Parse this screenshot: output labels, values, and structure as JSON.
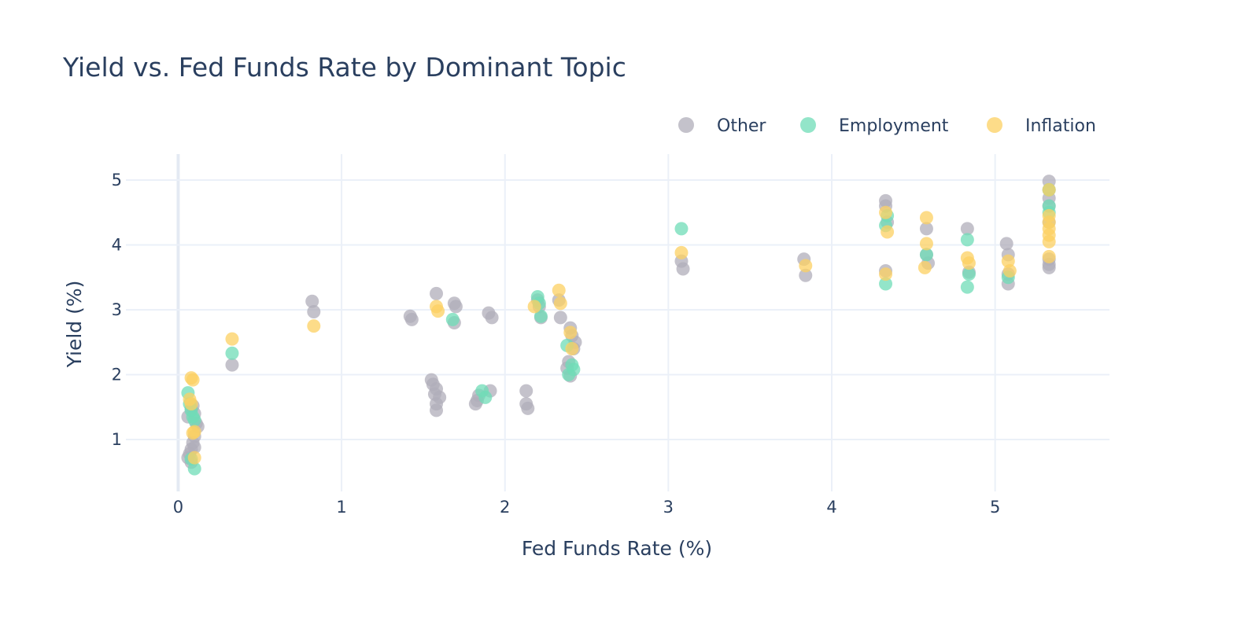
{
  "chart_data": {
    "type": "scatter",
    "title": "Yield vs. Fed Funds Rate by Dominant Topic",
    "xlabel": "Fed Funds Rate (%)",
    "ylabel": "Yield (%)",
    "xlim": [
      -0.32,
      5.7
    ],
    "ylim": [
      0.2,
      5.4
    ],
    "xticks": [
      0,
      1,
      2,
      3,
      4,
      5
    ],
    "yticks": [
      1,
      2,
      3,
      4,
      5
    ],
    "grid": true,
    "legend_position": "top-right",
    "legend_orientation": "horizontal",
    "series": [
      {
        "name": "Other",
        "color": "#b0aeb9",
        "x": [
          0.06,
          0.07,
          0.08,
          0.09,
          0.1,
          0.11,
          0.06,
          0.08,
          0.09,
          0.1,
          0.12,
          0.08,
          0.1,
          0.33,
          0.82,
          0.83,
          1.42,
          1.43,
          1.55,
          1.56,
          1.58,
          1.57,
          1.58,
          1.58,
          1.6,
          1.58,
          1.69,
          1.7,
          1.69,
          1.82,
          1.83,
          1.84,
          1.9,
          1.92,
          1.91,
          2.13,
          2.13,
          2.14,
          2.2,
          2.21,
          2.22,
          2.33,
          2.34,
          2.4,
          2.41,
          2.39,
          2.42,
          2.4,
          2.43,
          2.38,
          3.08,
          3.09,
          3.83,
          3.84,
          4.33,
          4.33,
          4.34,
          4.33,
          4.58,
          4.58,
          4.59,
          4.83,
          4.84,
          5.07,
          5.08,
          5.08,
          5.08,
          5.33,
          5.33,
          5.33,
          5.33,
          5.33,
          5.33,
          5.33,
          5.33
        ],
        "y": [
          0.72,
          0.78,
          0.85,
          0.95,
          1.05,
          1.25,
          1.35,
          1.48,
          1.52,
          1.4,
          1.2,
          0.65,
          0.88,
          2.15,
          3.13,
          2.97,
          2.9,
          2.85,
          1.92,
          1.85,
          1.78,
          1.7,
          1.55,
          1.45,
          1.65,
          3.25,
          3.1,
          3.05,
          2.8,
          1.55,
          1.6,
          1.68,
          2.95,
          2.88,
          1.75,
          1.75,
          1.55,
          1.48,
          3.15,
          3.05,
          2.88,
          3.15,
          2.88,
          2.72,
          2.6,
          2.2,
          2.4,
          1.98,
          2.5,
          2.1,
          3.75,
          3.63,
          3.78,
          3.53,
          4.68,
          4.6,
          4.35,
          3.6,
          4.25,
          3.85,
          3.72,
          4.25,
          3.58,
          4.02,
          3.85,
          3.55,
          3.4,
          4.98,
          4.85,
          4.72,
          4.6,
          4.35,
          3.78,
          3.7,
          3.65
        ]
      },
      {
        "name": "Employment",
        "color": "#6fdcb7",
        "x": [
          0.06,
          0.07,
          0.08,
          0.09,
          0.1,
          0.08,
          0.1,
          0.33,
          1.68,
          1.86,
          1.88,
          2.2,
          2.21,
          2.22,
          2.38,
          2.39,
          2.41,
          2.42,
          3.08,
          4.33,
          4.33,
          4.34,
          4.58,
          4.83,
          4.84,
          4.83,
          5.08,
          5.33,
          5.33,
          5.33
        ],
        "y": [
          1.72,
          1.55,
          1.45,
          1.35,
          1.3,
          0.7,
          0.55,
          2.33,
          2.85,
          1.75,
          1.65,
          3.2,
          3.1,
          2.9,
          2.45,
          2.0,
          2.15,
          2.08,
          4.25,
          3.4,
          4.3,
          4.45,
          3.85,
          3.35,
          3.55,
          4.08,
          3.5,
          4.85,
          4.6,
          4.5
        ]
      },
      {
        "name": "Inflation",
        "color": "#fcd062",
        "x": [
          0.08,
          0.09,
          0.07,
          0.08,
          0.1,
          0.09,
          0.1,
          0.33,
          0.83,
          1.58,
          1.59,
          2.18,
          2.33,
          2.34,
          2.4,
          2.41,
          3.08,
          3.84,
          4.33,
          4.34,
          4.33,
          4.58,
          4.58,
          4.57,
          4.83,
          4.84,
          5.08,
          5.09,
          5.33,
          5.33,
          5.33,
          5.33,
          5.33,
          5.33,
          5.33
        ],
        "y": [
          1.95,
          1.92,
          1.62,
          1.55,
          1.12,
          1.1,
          0.72,
          2.55,
          2.75,
          3.05,
          2.98,
          3.05,
          3.3,
          3.1,
          2.65,
          2.4,
          3.88,
          3.68,
          4.5,
          4.2,
          3.55,
          4.42,
          4.02,
          3.65,
          3.8,
          3.72,
          3.75,
          3.6,
          4.85,
          4.45,
          4.35,
          4.25,
          4.15,
          4.05,
          3.82
        ]
      }
    ]
  }
}
